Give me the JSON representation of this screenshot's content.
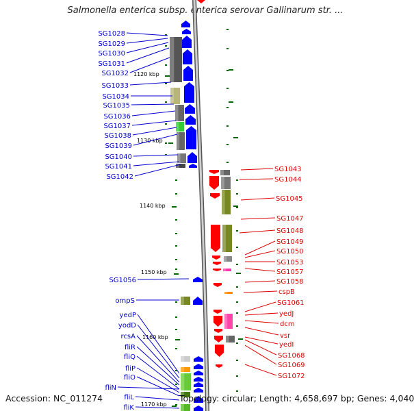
{
  "header": {
    "title": "Salmonella enterica subsp. enterica serovar Gallinarum str. ..."
  },
  "footer": {
    "accession": "Accession: NC_011274",
    "summary": "Topology: circular; Length: 4,658,697 bp; Genes: 4,040"
  },
  "colors": {
    "forward_label": "#0000cc",
    "reverse_label": "#dd0000",
    "forward_arrow": "#0000ff",
    "reverse_arrow": "#ff0000",
    "backbone": "#888888",
    "tick": "#006600"
  },
  "scale_labels": [
    "1120 kbp",
    "1130 kbp",
    "1140 kbp",
    "1150 kbp",
    "1160 kbp",
    "1170 kbp"
  ],
  "forward_genes": [
    "SG1028",
    "SG1029",
    "SG1030",
    "SG1031",
    "SG1032",
    "SG1033",
    "SG1034",
    "SG1035",
    "SG1036",
    "SG1037",
    "SG1038",
    "SG1039",
    "SG1040",
    "SG1041",
    "SG1042",
    "SG1056",
    "ompS",
    "yedP",
    "yodD",
    "rcsA",
    "fliR",
    "fliQ",
    "fliP",
    "fliO",
    "fliN",
    "fliL",
    "fliK"
  ],
  "reverse_genes": [
    "SG1043",
    "SG1044",
    "SG1045",
    "SG1047",
    "SG1048",
    "SG1049",
    "SG1050",
    "SG1053",
    "SG1057",
    "SG1058",
    "cspB",
    "SG1061",
    "yedJ",
    "dcm",
    "vsr",
    "yedI",
    "SG1068",
    "SG1069",
    "SG1072"
  ]
}
